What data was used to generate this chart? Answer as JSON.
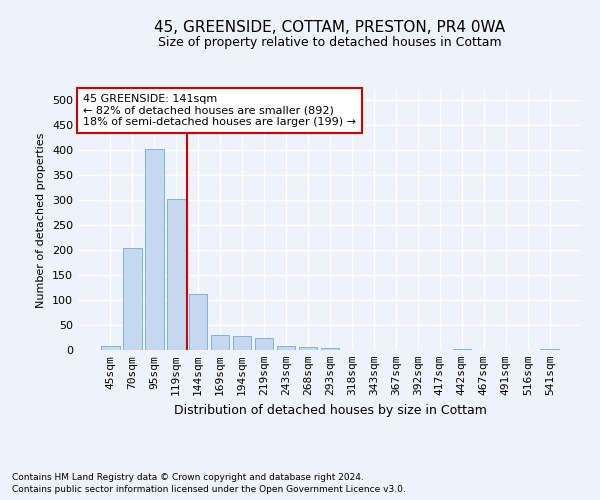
{
  "title_line1": "45, GREENSIDE, COTTAM, PRESTON, PR4 0WA",
  "title_line2": "Size of property relative to detached houses in Cottam",
  "xlabel": "Distribution of detached houses by size in Cottam",
  "ylabel": "Number of detached properties",
  "bar_values": [
    8,
    205,
    403,
    303,
    112,
    30,
    28,
    25,
    8,
    6,
    4,
    1,
    0,
    0,
    0,
    0,
    3,
    0,
    0,
    0,
    3
  ],
  "categories": [
    "45sqm",
    "70sqm",
    "95sqm",
    "119sqm",
    "144sqm",
    "169sqm",
    "194sqm",
    "219sqm",
    "243sqm",
    "268sqm",
    "293sqm",
    "318sqm",
    "343sqm",
    "367sqm",
    "392sqm",
    "417sqm",
    "442sqm",
    "467sqm",
    "491sqm",
    "516sqm",
    "541sqm"
  ],
  "bar_color": "#c5d8f0",
  "bar_edgecolor": "#6baed6",
  "redline_x": 4,
  "annotation_text": "45 GREENSIDE: 141sqm\n← 82% of detached houses are smaller (892)\n18% of semi-detached houses are larger (199) →",
  "annotation_box_color": "#ffffff",
  "annotation_box_edgecolor": "#cc0000",
  "ylim": [
    0,
    520
  ],
  "yticks": [
    0,
    50,
    100,
    150,
    200,
    250,
    300,
    350,
    400,
    450,
    500
  ],
  "footer_line1": "Contains HM Land Registry data © Crown copyright and database right 2024.",
  "footer_line2": "Contains public sector information licensed under the Open Government Licence v3.0.",
  "background_color": "#eef2fa",
  "grid_color": "#ffffff",
  "title_fontsize": 11,
  "subtitle_fontsize": 9,
  "ylabel_fontsize": 8,
  "xlabel_fontsize": 9,
  "tick_fontsize": 8,
  "ann_fontsize": 8
}
